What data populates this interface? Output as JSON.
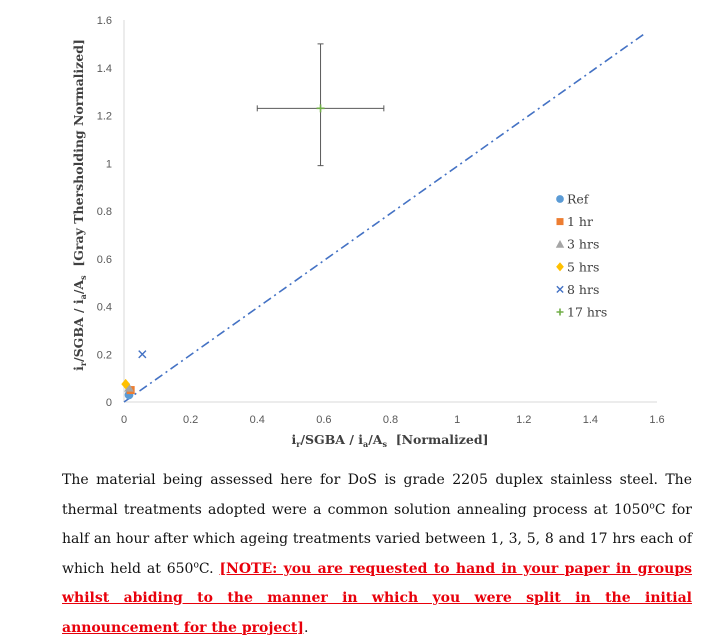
{
  "chart_data": {
    "type": "scatter",
    "xlabel": {
      "main": "i",
      "sub1": "r",
      "mid": "/SGBA / i",
      "sub2": "a",
      "mid2": "/A",
      "sub3": "s",
      "tail": "  [Normalized]"
    },
    "ylabel": {
      "main": "i",
      "sub1": "r",
      "mid": "/SGBA / i",
      "sub2": "a",
      "mid2": "/A",
      "sub3": "s",
      "tail": "  [Gray Thersholding Normalized]"
    },
    "xlim": [
      0,
      1.6
    ],
    "ylim": [
      0,
      1.6
    ],
    "xticks": [
      "0",
      "0.2",
      "0.4",
      "0.6",
      "0.8",
      "1",
      "1.2",
      "1.4",
      "1.6"
    ],
    "yticks": [
      "0",
      "0.2",
      "0.4",
      "0.6",
      "0.8",
      "1",
      "1.2",
      "1.4",
      "1.6"
    ],
    "series": [
      {
        "name": "Ref",
        "marker": "circle",
        "color": "#5b9bd5",
        "points": [
          [
            0.015,
            0.03
          ]
        ]
      },
      {
        "name": "1 hr",
        "marker": "square",
        "color": "#ed7d31",
        "points": [
          [
            0.02,
            0.05
          ]
        ]
      },
      {
        "name": "3 hrs",
        "marker": "triangle",
        "color": "#a5a5a5",
        "points": [
          [
            0.015,
            0.06
          ]
        ]
      },
      {
        "name": "5 hrs",
        "marker": "diamond",
        "color": "#ffc000",
        "points": [
          [
            0.005,
            0.075
          ]
        ]
      },
      {
        "name": "8 hrs",
        "marker": "x",
        "color": "#4472c4",
        "points": [
          [
            0.055,
            0.2
          ]
        ]
      },
      {
        "name": "17 hrs",
        "marker": "plus",
        "color": "#70ad47",
        "points": [
          [
            0.59,
            1.23
          ]
        ],
        "error_x": [
          0.4,
          0.78
        ],
        "error_y": [
          0.99,
          1.5
        ]
      }
    ],
    "reference_line": {
      "style": "dash-dot",
      "color": "#4472c4",
      "from": [
        0,
        0
      ],
      "to": [
        1.56,
        1.54
      ]
    }
  },
  "paragraph": {
    "text1": "The material being assessed here for DoS is grade 2205 duplex stainless steel. The thermal treatments adopted were a common solution annealing process at 1050",
    "deg1": "o",
    "text2": "C for half an hour after which ageing treatments varied between 1, 3, 5, 8 and 17 hrs each of which held at 650",
    "deg2": "o",
    "text3": "C. ",
    "note": "[NOTE: you are requested to hand in your paper in groups whilst abiding to the manner in which you were split in the initial announcement for the project]",
    "end": "."
  }
}
